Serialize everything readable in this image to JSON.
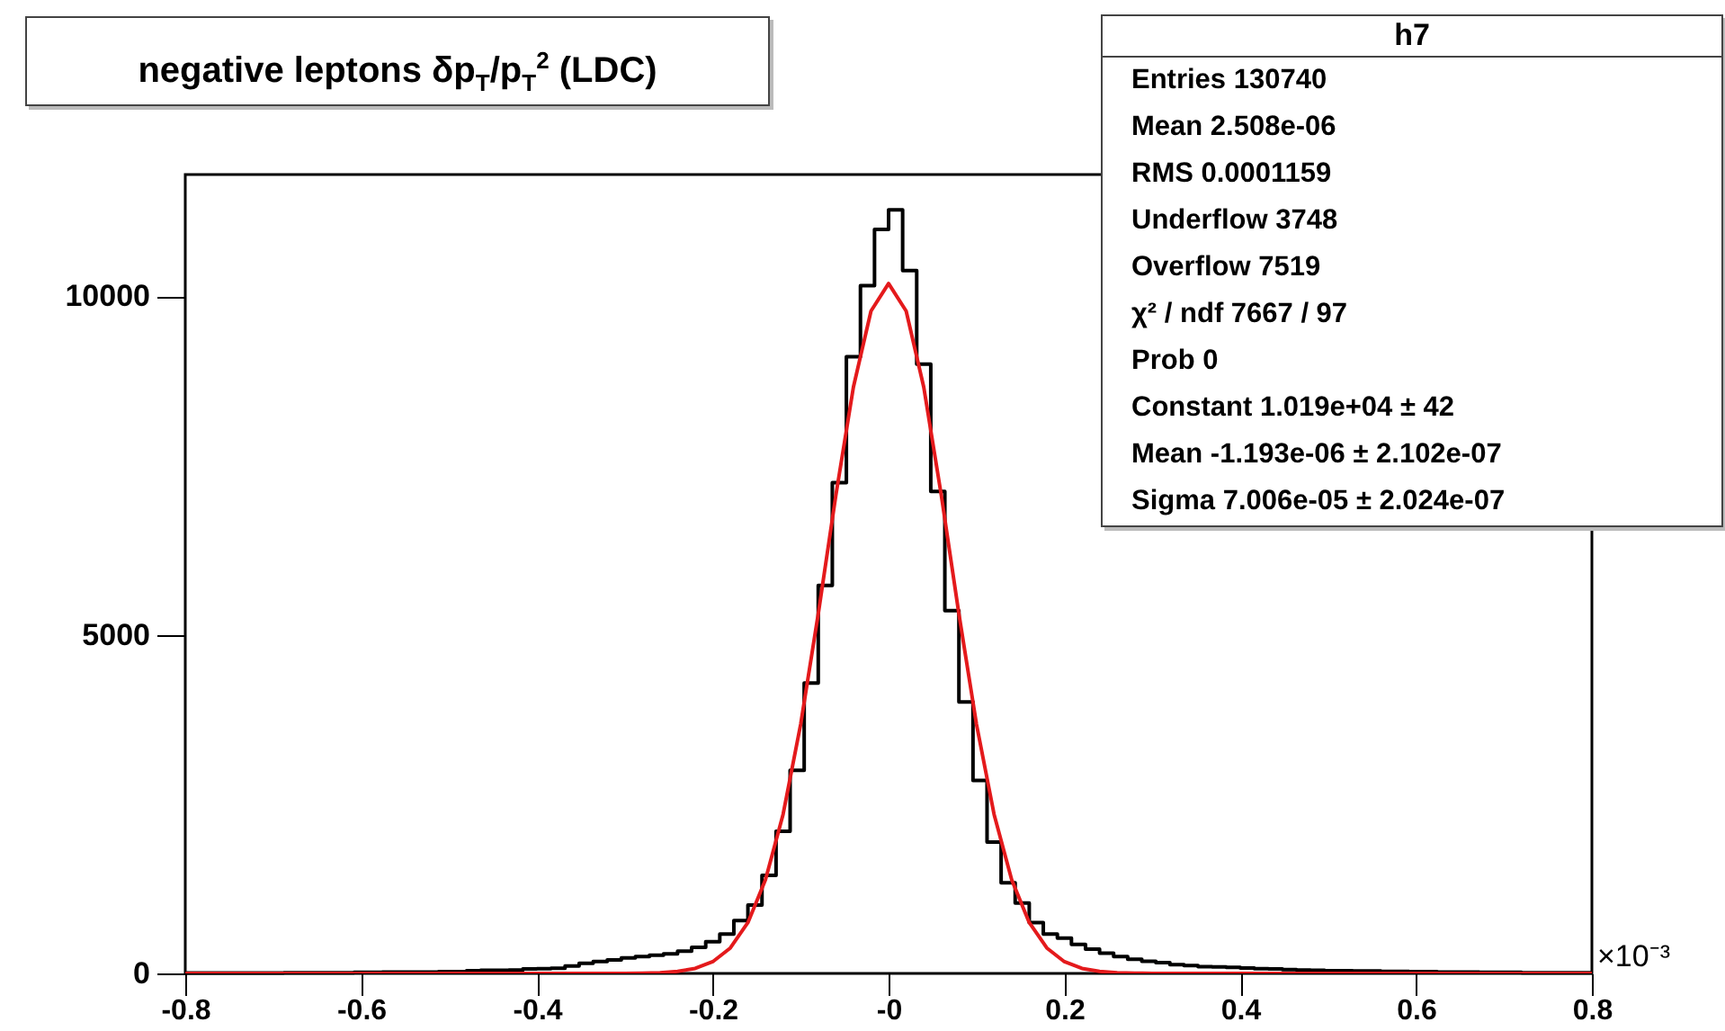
{
  "chart_data": {
    "type": "histogram",
    "title": "negative leptons δp$_{T}$/p$_{T}$$^{2}$ (LDC)",
    "xlabel": "×10⁻³",
    "bins": [
      -0.8,
      -0.784,
      -0.768,
      -0.752,
      -0.736,
      -0.72,
      -0.704,
      -0.688,
      -0.672,
      -0.656,
      -0.64,
      -0.624,
      -0.608,
      -0.592,
      -0.576,
      -0.56,
      -0.544,
      -0.528,
      -0.512,
      -0.496,
      -0.48,
      -0.464,
      -0.448,
      -0.432,
      -0.416,
      -0.4,
      -0.384,
      -0.368,
      -0.352,
      -0.336,
      -0.32,
      -0.304,
      -0.288,
      -0.272,
      -0.256,
      -0.24,
      -0.224,
      -0.208,
      -0.192,
      -0.176,
      -0.16,
      -0.144,
      -0.128,
      -0.112,
      -0.096,
      -0.08,
      -0.064,
      -0.048,
      -0.032,
      -0.016,
      0,
      0.016,
      0.032,
      0.048,
      0.064,
      0.08,
      0.096,
      0.112,
      0.128,
      0.144,
      0.16,
      0.176,
      0.192,
      0.208,
      0.224,
      0.24,
      0.256,
      0.272,
      0.288,
      0.304,
      0.32,
      0.336,
      0.352,
      0.368,
      0.384,
      0.4,
      0.416,
      0.432,
      0.448,
      0.464,
      0.48,
      0.496,
      0.512,
      0.528,
      0.544,
      0.56,
      0.576,
      0.592,
      0.608,
      0.624,
      0.64,
      0.656,
      0.672,
      0.688,
      0.704,
      0.72,
      0.736,
      0.752,
      0.768,
      0.784,
      0.8
    ],
    "values": [
      5,
      5,
      5,
      5,
      5,
      5,
      5,
      10,
      10,
      10,
      10,
      10,
      15,
      15,
      20,
      20,
      20,
      20,
      25,
      25,
      40,
      45,
      45,
      50,
      65,
      70,
      75,
      110,
      150,
      175,
      200,
      230,
      250,
      270,
      290,
      330,
      385,
      470,
      580,
      780,
      1010,
      1450,
      2100,
      3000,
      4290,
      5730,
      7250,
      9110,
      10160,
      10990,
      11280,
      10380,
      9000,
      7120,
      5360,
      4010,
      2850,
      1940,
      1340,
      1040,
      750,
      580,
      520,
      430,
      360,
      300,
      250,
      210,
      180,
      160,
      130,
      115,
      100,
      95,
      90,
      80,
      70,
      65,
      55,
      50,
      45,
      40,
      40,
      35,
      35,
      30,
      30,
      25,
      25,
      20,
      20,
      20,
      15,
      15,
      15,
      10,
      10,
      10,
      10,
      10
    ],
    "color": "#000000",
    "series": [
      {
        "type": "line",
        "color": "#e41a1c",
        "x": [
          -0.8,
          -0.3,
          -0.28,
          -0.26,
          -0.24,
          -0.22,
          -0.2,
          -0.18,
          -0.16,
          -0.14,
          -0.12,
          -0.1,
          -0.08,
          -0.06,
          -0.04,
          -0.02,
          0,
          0.02,
          0.04,
          0.06,
          0.08,
          0.1,
          0.12,
          0.14,
          0.16,
          0.18,
          0.2,
          0.22,
          0.24,
          0.26,
          0.28,
          0.3,
          0.8
        ],
        "values": [
          0,
          1,
          3,
          10,
          29,
          74,
          173,
          376,
          751,
          1384,
          2350,
          3680,
          5310,
          7060,
          8660,
          9783,
          10190,
          9783,
          8660,
          7060,
          5310,
          3680,
          2350,
          1384,
          751,
          376,
          173,
          74,
          29,
          10,
          3,
          1,
          0
        ]
      }
    ],
    "xlim": [
      -0.8,
      0.8
    ],
    "ylim": [
      0,
      11800
    ],
    "xticks": [
      -0.8,
      -0.6,
      -0.4,
      -0.2,
      {
        "value": 0,
        "label": "-0"
      },
      0.2,
      0.4,
      0.6,
      0.8
    ],
    "yticks": [
      0,
      5000,
      10000
    ],
    "annotations": [
      "h7",
      "Entries 130740",
      "Mean 2.508e-06",
      "RMS 0.0001159",
      "Underflow 3748",
      "Overflow 7519",
      "χ² / ndf 7667 / 97",
      "Prob 0",
      "Constant 1.019e+04 ± 42",
      "Mean -1.193e-06 ± 2.102e-07",
      "Sigma 7.006e-05 ± 2.024e-07"
    ]
  }
}
